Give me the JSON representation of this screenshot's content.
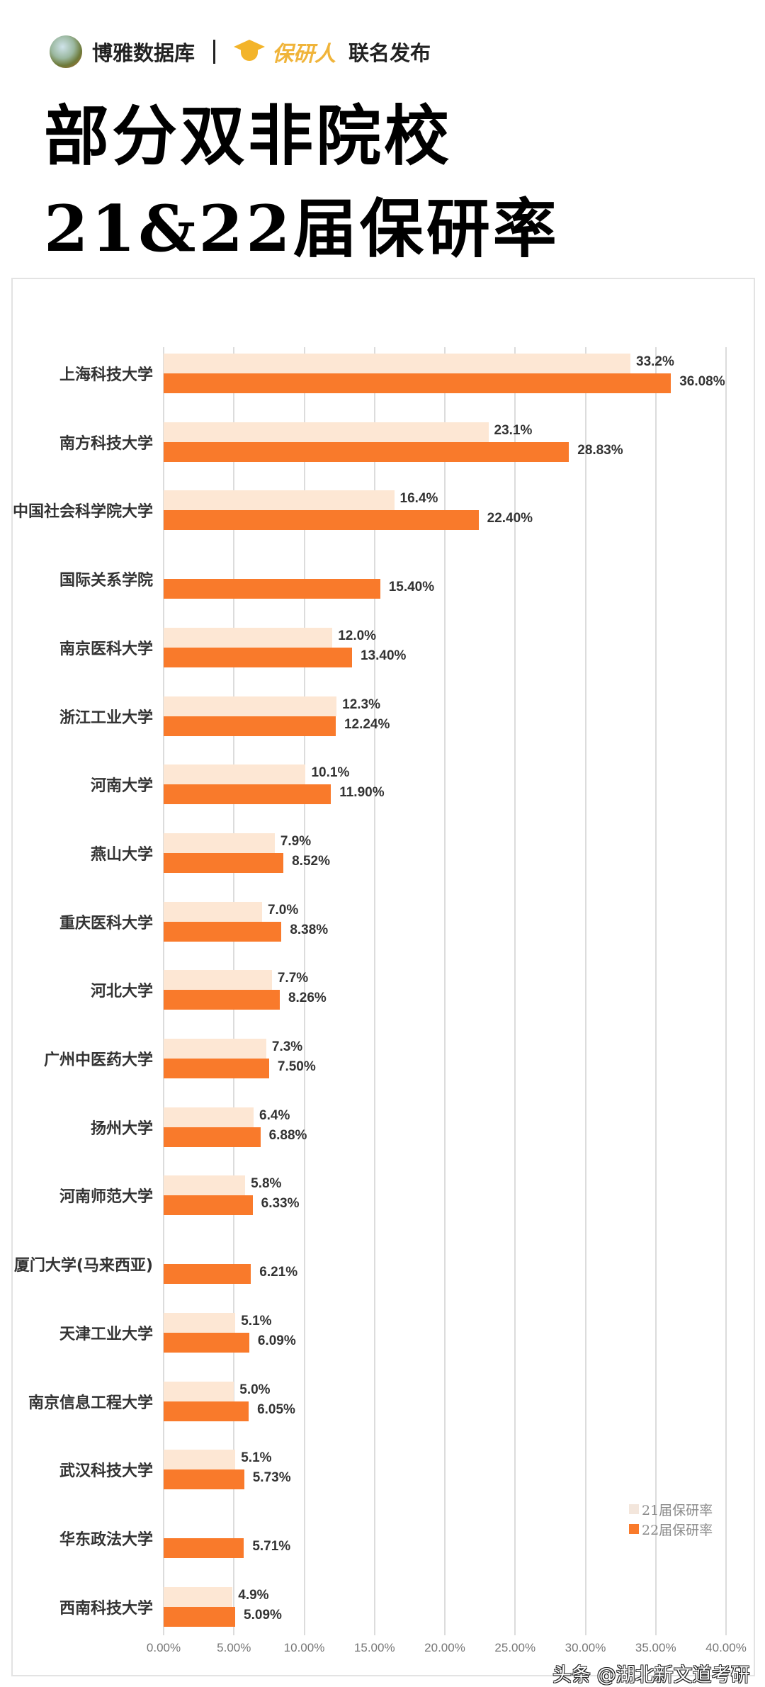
{
  "header": {
    "publisher1": "博雅数据库",
    "publisher2": "保研人",
    "suffix": "联名发布"
  },
  "title": {
    "line1": "部分双非院校",
    "line2": "21&22届保研率"
  },
  "colors": {
    "series21": "#fde7d4",
    "series22": "#f97a2b"
  },
  "watermark": "头条 @湖北新文道考研",
  "chart_data": {
    "type": "bar",
    "orientation": "horizontal",
    "title": "部分双非院校 21&22届保研率",
    "xlabel": "",
    "ylabel": "",
    "xlim": [
      0,
      40
    ],
    "x_ticks": [
      "0.00%",
      "5.00%",
      "10.00%",
      "15.00%",
      "20.00%",
      "25.00%",
      "30.00%",
      "35.00%",
      "40.00%"
    ],
    "grid": true,
    "legend_position": "bottom-right",
    "categories": [
      "上海科技大学",
      "南方科技大学",
      "中国社会科学院大学",
      "国际关系学院",
      "南京医科大学",
      "浙江工业大学",
      "河南大学",
      "燕山大学",
      "重庆医科大学",
      "河北大学",
      "广州中医药大学",
      "扬州大学",
      "河南师范大学",
      "厦门大学(马来西亚)",
      "天津工业大学",
      "南京信息工程大学",
      "武汉科技大学",
      "华东政法大学",
      "西南科技大学"
    ],
    "series": [
      {
        "name": "21届保研率",
        "values": [
          33.2,
          23.1,
          16.4,
          null,
          12.0,
          12.3,
          10.1,
          7.9,
          7.0,
          7.7,
          7.3,
          6.4,
          5.8,
          null,
          5.1,
          5.0,
          5.1,
          null,
          4.9
        ],
        "labels": [
          "33.2%",
          "23.1%",
          "16.4%",
          "",
          "12.0%",
          "12.3%",
          "10.1%",
          "7.9%",
          "7.0%",
          "7.7%",
          "7.3%",
          "6.4%",
          "5.8%",
          "",
          "5.1%",
          "5.0%",
          "5.1%",
          "",
          "4.9%"
        ]
      },
      {
        "name": "22届保研率",
        "values": [
          36.08,
          28.83,
          22.4,
          15.4,
          13.4,
          12.24,
          11.9,
          8.52,
          8.38,
          8.26,
          7.5,
          6.88,
          6.33,
          6.21,
          6.09,
          6.05,
          5.73,
          5.71,
          5.09
        ],
        "labels": [
          "36.08%",
          "28.83%",
          "22.40%",
          "15.40%",
          "13.40%",
          "12.24%",
          "11.90%",
          "8.52%",
          "8.38%",
          "8.26%",
          "7.50%",
          "6.88%",
          "6.33%",
          "6.21%",
          "6.09%",
          "6.05%",
          "5.73%",
          "5.71%",
          "5.09%"
        ]
      }
    ]
  }
}
